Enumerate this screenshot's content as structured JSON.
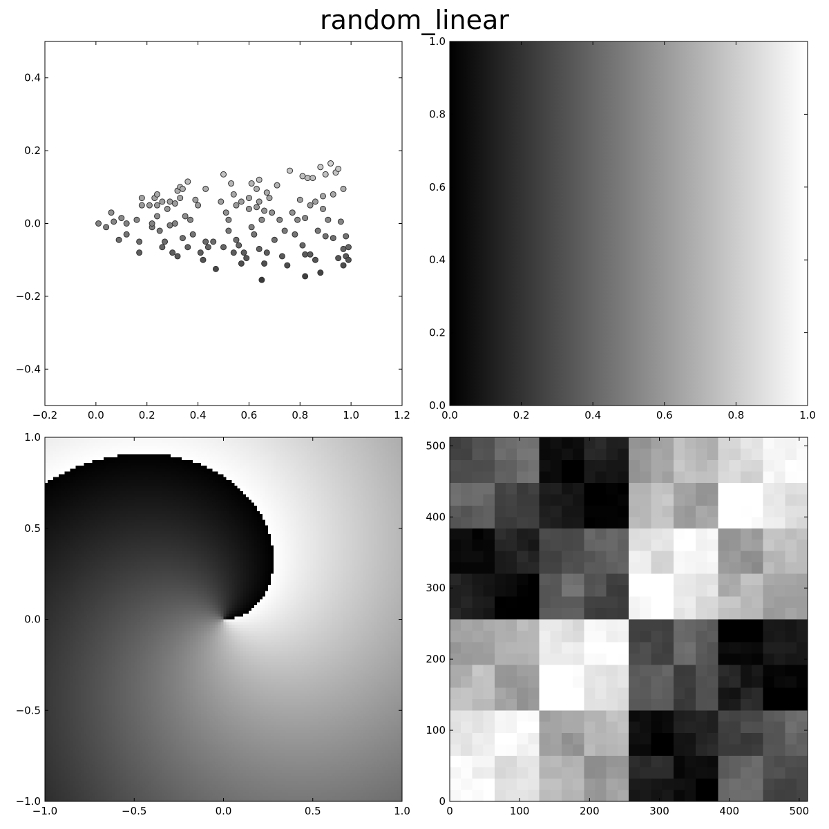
{
  "figure_title": "random_linear",
  "chart_data": [
    {
      "id": "scatter",
      "type": "scatter",
      "xlim": [
        -0.2,
        1.2
      ],
      "ylim": [
        -0.5,
        0.5
      ],
      "xticks": [
        -0.2,
        0.0,
        0.2,
        0.4,
        0.6,
        0.8,
        1.0,
        1.2
      ],
      "yticks": [
        -0.4,
        -0.2,
        0.0,
        0.2,
        0.4
      ],
      "xtick_labels": [
        "−0.2",
        "0.0",
        "0.2",
        "0.4",
        "0.6",
        "0.8",
        "1.0",
        "1.2"
      ],
      "ytick_labels": [
        "−0.4",
        "−0.2",
        "0.0",
        "0.2",
        "0.4"
      ],
      "colormap": "gray, darker for lower y",
      "points": [
        [
          0.01,
          0.0
        ],
        [
          0.04,
          -0.01
        ],
        [
          0.06,
          0.03
        ],
        [
          0.07,
          0.005
        ],
        [
          0.09,
          -0.045
        ],
        [
          0.1,
          0.015
        ],
        [
          0.12,
          -0.03
        ],
        [
          0.12,
          0.0
        ],
        [
          0.16,
          0.01
        ],
        [
          0.17,
          -0.05
        ],
        [
          0.17,
          -0.08
        ],
        [
          0.18,
          0.07
        ],
        [
          0.18,
          0.05
        ],
        [
          0.21,
          0.05
        ],
        [
          0.22,
          -0.01
        ],
        [
          0.22,
          0.0
        ],
        [
          0.23,
          0.07
        ],
        [
          0.24,
          0.08
        ],
        [
          0.24,
          0.05
        ],
        [
          0.24,
          0.02
        ],
        [
          0.25,
          -0.02
        ],
        [
          0.26,
          -0.065
        ],
        [
          0.26,
          0.06
        ],
        [
          0.27,
          -0.05
        ],
        [
          0.28,
          0.04
        ],
        [
          0.29,
          -0.005
        ],
        [
          0.29,
          0.06
        ],
        [
          0.3,
          -0.08
        ],
        [
          0.31,
          0.055
        ],
        [
          0.31,
          0.0
        ],
        [
          0.32,
          0.09
        ],
        [
          0.32,
          -0.09
        ],
        [
          0.33,
          0.07
        ],
        [
          0.33,
          0.1
        ],
        [
          0.34,
          0.095
        ],
        [
          0.34,
          -0.04
        ],
        [
          0.35,
          0.02
        ],
        [
          0.36,
          0.115
        ],
        [
          0.36,
          -0.065
        ],
        [
          0.37,
          0.01
        ],
        [
          0.38,
          -0.03
        ],
        [
          0.39,
          0.065
        ],
        [
          0.4,
          0.05
        ],
        [
          0.41,
          -0.08
        ],
        [
          0.42,
          -0.1
        ],
        [
          0.43,
          -0.05
        ],
        [
          0.43,
          0.095
        ],
        [
          0.44,
          -0.065
        ],
        [
          0.46,
          -0.05
        ],
        [
          0.47,
          -0.125
        ],
        [
          0.49,
          0.06
        ],
        [
          0.5,
          0.135
        ],
        [
          0.5,
          -0.065
        ],
        [
          0.51,
          0.03
        ],
        [
          0.52,
          0.01
        ],
        [
          0.52,
          -0.02
        ],
        [
          0.53,
          0.11
        ],
        [
          0.54,
          -0.08
        ],
        [
          0.54,
          0.08
        ],
        [
          0.55,
          0.05
        ],
        [
          0.55,
          -0.045
        ],
        [
          0.56,
          -0.06
        ],
        [
          0.57,
          -0.11
        ],
        [
          0.57,
          0.06
        ],
        [
          0.58,
          -0.08
        ],
        [
          0.59,
          -0.095
        ],
        [
          0.6,
          0.04
        ],
        [
          0.6,
          0.07
        ],
        [
          0.61,
          0.11
        ],
        [
          0.61,
          -0.01
        ],
        [
          0.62,
          -0.03
        ],
        [
          0.63,
          0.045
        ],
        [
          0.63,
          0.095
        ],
        [
          0.64,
          0.12
        ],
        [
          0.64,
          0.06
        ],
        [
          0.64,
          -0.07
        ],
        [
          0.65,
          -0.155
        ],
        [
          0.65,
          0.01
        ],
        [
          0.66,
          0.035
        ],
        [
          0.66,
          -0.11
        ],
        [
          0.67,
          0.085
        ],
        [
          0.67,
          -0.08
        ],
        [
          0.68,
          0.07
        ],
        [
          0.69,
          0.03
        ],
        [
          0.7,
          -0.045
        ],
        [
          0.71,
          0.105
        ],
        [
          0.72,
          0.01
        ],
        [
          0.73,
          -0.09
        ],
        [
          0.74,
          -0.02
        ],
        [
          0.75,
          -0.115
        ],
        [
          0.76,
          0.145
        ],
        [
          0.77,
          0.03
        ],
        [
          0.78,
          -0.03
        ],
        [
          0.79,
          0.01
        ],
        [
          0.8,
          0.065
        ],
        [
          0.81,
          -0.06
        ],
        [
          0.81,
          0.13
        ],
        [
          0.82,
          -0.145
        ],
        [
          0.82,
          -0.085
        ],
        [
          0.82,
          0.015
        ],
        [
          0.83,
          0.125
        ],
        [
          0.84,
          0.05
        ],
        [
          0.84,
          -0.085
        ],
        [
          0.85,
          0.125
        ],
        [
          0.86,
          0.06
        ],
        [
          0.86,
          -0.1
        ],
        [
          0.87,
          -0.02
        ],
        [
          0.88,
          0.155
        ],
        [
          0.88,
          -0.135
        ],
        [
          0.89,
          0.075
        ],
        [
          0.89,
          0.04
        ],
        [
          0.9,
          0.135
        ],
        [
          0.9,
          -0.035
        ],
        [
          0.91,
          0.01
        ],
        [
          0.92,
          0.165
        ],
        [
          0.93,
          0.08
        ],
        [
          0.93,
          -0.04
        ],
        [
          0.94,
          0.14
        ],
        [
          0.95,
          0.15
        ],
        [
          0.95,
          -0.095
        ],
        [
          0.96,
          0.005
        ],
        [
          0.97,
          0.095
        ],
        [
          0.97,
          -0.115
        ],
        [
          0.97,
          -0.07
        ],
        [
          0.98,
          -0.09
        ],
        [
          0.98,
          -0.035
        ],
        [
          0.99,
          -0.1
        ],
        [
          0.99,
          -0.065
        ]
      ]
    },
    {
      "id": "gradient",
      "type": "heatmap",
      "xlim": [
        0.0,
        1.0
      ],
      "ylim": [
        0.0,
        1.0
      ],
      "xticks": [
        0.0,
        0.2,
        0.4,
        0.6,
        0.8,
        1.0
      ],
      "yticks": [
        0.0,
        0.2,
        0.4,
        0.6,
        0.8,
        1.0
      ],
      "xtick_labels": [
        "0.0",
        "0.2",
        "0.4",
        "0.6",
        "0.8",
        "1.0"
      ],
      "ytick_labels": [
        "0.0",
        "0.2",
        "0.4",
        "0.6",
        "0.8",
        "1.0"
      ],
      "colormap": "gray",
      "direction": "black at x=0 to white at x=1"
    },
    {
      "id": "spiral",
      "type": "heatmap",
      "xlim": [
        -1.0,
        1.0
      ],
      "ylim": [
        -1.0,
        1.0
      ],
      "xticks": [
        -1.0,
        -0.5,
        0.0,
        0.5,
        1.0
      ],
      "yticks": [
        -1.0,
        -0.5,
        0.0,
        0.5,
        1.0
      ],
      "xtick_labels": [
        "−1.0",
        "−0.5",
        "0.0",
        "0.5",
        "1.0"
      ],
      "ytick_labels": [
        "−1.0",
        "−0.5",
        "0.0",
        "0.5",
        "1.0"
      ],
      "colormap": "gray",
      "pattern": "spiral"
    },
    {
      "id": "blocks",
      "type": "heatmap",
      "xlim": [
        0,
        512
      ],
      "ylim": [
        0,
        512
      ],
      "xticks": [
        0,
        100,
        200,
        300,
        400,
        500
      ],
      "yticks": [
        0,
        100,
        200,
        300,
        400,
        500
      ],
      "xtick_labels": [
        "0",
        "100",
        "200",
        "300",
        "400",
        "500"
      ],
      "ytick_labels": [
        "0",
        "100",
        "200",
        "300",
        "400",
        "500"
      ],
      "colormap": "gray",
      "pattern": "hierarchical block structure"
    }
  ]
}
